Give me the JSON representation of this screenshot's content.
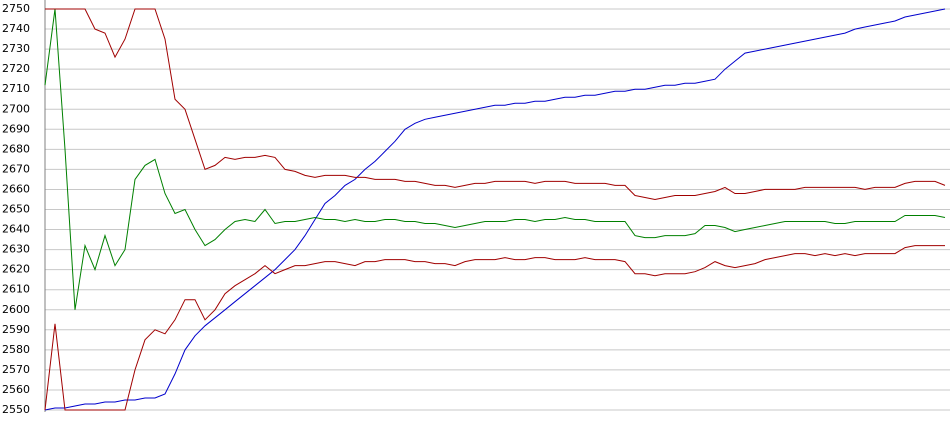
{
  "chart_data": {
    "type": "line",
    "ylim": [
      2550,
      2750
    ],
    "yticks": [
      2550,
      2560,
      2570,
      2580,
      2590,
      2600,
      2610,
      2620,
      2630,
      2640,
      2650,
      2660,
      2670,
      2680,
      2690,
      2700,
      2710,
      2720,
      2730,
      2740,
      2750
    ],
    "grid": true,
    "series": [
      {
        "color": "#0000cc",
        "values": [
          2550,
          2551,
          2551,
          2552,
          2553,
          2553,
          2554,
          2554,
          2555,
          2555,
          2556,
          2556,
          2558,
          2568,
          2580,
          2587,
          2592,
          2596,
          2600,
          2604,
          2608,
          2612,
          2616,
          2620,
          2625,
          2630,
          2637,
          2645,
          2653,
          2657,
          2662,
          2665,
          2670,
          2674,
          2679,
          2684,
          2690,
          2693,
          2695,
          2696,
          2697,
          2698,
          2699,
          2700,
          2701,
          2702,
          2702,
          2703,
          2703,
          2704,
          2704,
          2705,
          2706,
          2706,
          2707,
          2707,
          2708,
          2709,
          2709,
          2710,
          2710,
          2711,
          2712,
          2712,
          2713,
          2713,
          2714,
          2715,
          2720,
          2724,
          2728,
          2729,
          2730,
          2731,
          2732,
          2733,
          2734,
          2735,
          2736,
          2737,
          2738,
          2740,
          2741,
          2742,
          2743,
          2744,
          2746,
          2747,
          2748,
          2749,
          2750
        ]
      },
      {
        "color": "#008000",
        "values": [
          2712,
          2750,
          2680,
          2600,
          2632,
          2620,
          2637,
          2622,
          2630,
          2665,
          2672,
          2675,
          2658,
          2648,
          2650,
          2640,
          2632,
          2635,
          2640,
          2644,
          2645,
          2644,
          2650,
          2643,
          2644,
          2644,
          2645,
          2646,
          2645,
          2645,
          2644,
          2645,
          2644,
          2644,
          2645,
          2645,
          2644,
          2644,
          2643,
          2643,
          2642,
          2641,
          2642,
          2643,
          2644,
          2644,
          2644,
          2645,
          2645,
          2644,
          2645,
          2645,
          2646,
          2645,
          2645,
          2644,
          2644,
          2644,
          2644,
          2637,
          2636,
          2636,
          2637,
          2637,
          2637,
          2638,
          2642,
          2642,
          2641,
          2639,
          2640,
          2641,
          2642,
          2643,
          2644,
          2644,
          2644,
          2644,
          2644,
          2643,
          2643,
          2644,
          2644,
          2644,
          2644,
          2644,
          2647,
          2647,
          2647,
          2647,
          2646
        ]
      },
      {
        "color": "#a00000",
        "values": [
          2750,
          2750,
          2750,
          2750,
          2750,
          2740,
          2738,
          2726,
          2735,
          2750,
          2750,
          2750,
          2735,
          2705,
          2700,
          2685,
          2670,
          2672,
          2676,
          2675,
          2676,
          2676,
          2677,
          2676,
          2670,
          2669,
          2667,
          2666,
          2667,
          2667,
          2667,
          2666,
          2666,
          2665,
          2665,
          2665,
          2664,
          2664,
          2663,
          2662,
          2662,
          2661,
          2662,
          2663,
          2663,
          2664,
          2664,
          2664,
          2664,
          2663,
          2664,
          2664,
          2664,
          2663,
          2663,
          2663,
          2663,
          2662,
          2662,
          2657,
          2656,
          2655,
          2656,
          2657,
          2657,
          2657,
          2658,
          2659,
          2661,
          2658,
          2658,
          2659,
          2660,
          2660,
          2660,
          2660,
          2661,
          2661,
          2661,
          2661,
          2661,
          2661,
          2660,
          2661,
          2661,
          2661,
          2663,
          2664,
          2664,
          2664,
          2662
        ]
      },
      {
        "color": "#a00000",
        "values": [
          2550,
          2593,
          2550,
          2550,
          2550,
          2550,
          2550,
          2550,
          2550,
          2570,
          2585,
          2590,
          2588,
          2595,
          2605,
          2605,
          2595,
          2600,
          2608,
          2612,
          2615,
          2618,
          2622,
          2618,
          2620,
          2622,
          2622,
          2623,
          2624,
          2624,
          2623,
          2622,
          2624,
          2624,
          2625,
          2625,
          2625,
          2624,
          2624,
          2623,
          2623,
          2622,
          2624,
          2625,
          2625,
          2625,
          2626,
          2625,
          2625,
          2626,
          2626,
          2625,
          2625,
          2625,
          2626,
          2625,
          2625,
          2625,
          2624,
          2618,
          2618,
          2617,
          2618,
          2618,
          2618,
          2619,
          2621,
          2624,
          2622,
          2621,
          2622,
          2623,
          2625,
          2626,
          2627,
          2628,
          2628,
          2627,
          2628,
          2627,
          2628,
          2627,
          2628,
          2628,
          2628,
          2628,
          2631,
          2632,
          2632,
          2632,
          2632
        ]
      }
    ]
  }
}
